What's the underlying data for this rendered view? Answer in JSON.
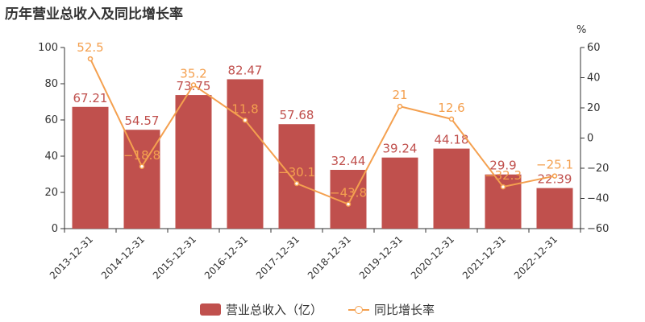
{
  "title": "历年营业总收入及同比增长率",
  "colors": {
    "bar": "#c0504d",
    "line": "#f4a04f",
    "axis": "#333333",
    "grid": "#e6e6e6"
  },
  "chart_data": {
    "type": "bar",
    "title": "历年营业总收入及同比增长率",
    "categories": [
      "2013-12-31",
      "2014-12-31",
      "2015-12-31",
      "2016-12-31",
      "2017-12-31",
      "2018-12-31",
      "2019-12-31",
      "2020-12-31",
      "2021-12-31",
      "2022-12-31"
    ],
    "series": [
      {
        "name": "营业总收入（亿）",
        "type": "bar",
        "axis": "left",
        "values": [
          67.21,
          54.57,
          73.75,
          82.47,
          57.68,
          32.44,
          39.24,
          44.18,
          29.9,
          22.39
        ],
        "labels": [
          "67.21",
          "54.57",
          "73.75",
          "82.47",
          "57.68",
          "32.44",
          "39.24",
          "44.18",
          "29.9",
          "22.39"
        ]
      },
      {
        "name": "同比增长率",
        "type": "line",
        "axis": "right",
        "values": [
          52.5,
          -18.8,
          35.2,
          11.8,
          -30.1,
          -43.8,
          21,
          12.6,
          -32.3,
          -25.1
        ],
        "labels": [
          "52.5",
          "−18.8",
          "35.2",
          "11.8",
          "−30.1",
          "−43.8",
          "21",
          "12.6",
          "−32.3",
          "−25.1"
        ]
      }
    ],
    "y_left": {
      "range": [
        0,
        100
      ],
      "ticks": [
        0,
        20,
        40,
        60,
        80,
        100
      ]
    },
    "y_right": {
      "range": [
        -60,
        60
      ],
      "ticks": [
        -60,
        -40,
        -20,
        0,
        20,
        40,
        60
      ],
      "tick_labels": [
        "−60",
        "−40",
        "−20",
        "0",
        "20",
        "40",
        "60"
      ],
      "unit": "%"
    },
    "grid": false,
    "legend_position": "bottom-center"
  }
}
